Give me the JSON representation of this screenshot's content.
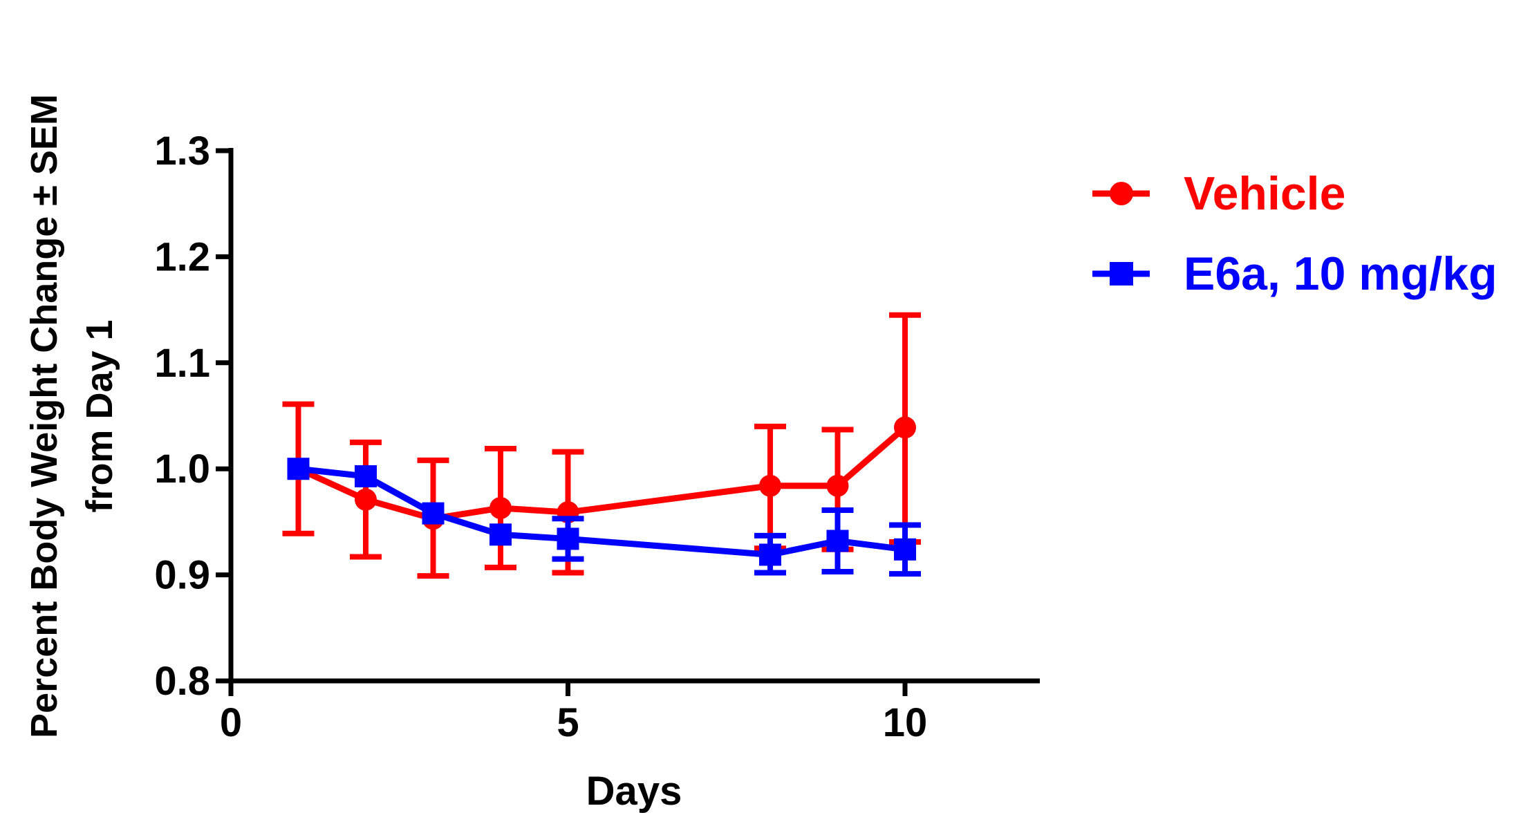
{
  "chart_data": {
    "type": "line",
    "title": "",
    "xlabel": "Days",
    "ylabel_line1": "Percent Body Weight Change ± SEM",
    "ylabel_line2": "from  Day 1",
    "xlim": [
      0,
      12
    ],
    "ylim": [
      0.8,
      1.3
    ],
    "xticks": [
      0,
      5,
      10
    ],
    "xtick_labels": [
      "0",
      "5",
      "10"
    ],
    "yticks": [
      0.8,
      0.9,
      1.0,
      1.1,
      1.2,
      1.3
    ],
    "ytick_labels": [
      "0.8",
      "0.9",
      "1.0",
      "1.1",
      "1.2",
      "1.3"
    ],
    "grid": false,
    "legend_position": "top-right outside",
    "series": [
      {
        "name": "Vehicle",
        "color": "#ff0000",
        "marker": "circle",
        "x": [
          1,
          2,
          3,
          4,
          5,
          8,
          9,
          10
        ],
        "y": [
          1.0,
          0.971,
          0.953,
          0.963,
          0.959,
          0.984,
          0.984,
          1.039
        ],
        "err_low": [
          0.939,
          0.917,
          0.899,
          0.907,
          0.902,
          0.925,
          0.924,
          0.931
        ],
        "err_high": [
          1.061,
          1.025,
          1.008,
          1.019,
          1.016,
          1.04,
          1.037,
          1.145
        ]
      },
      {
        "name": "E6a, 10 mg/kg",
        "color": "#0000ff",
        "marker": "square",
        "x": [
          1,
          2,
          3,
          4,
          5,
          8,
          9,
          10
        ],
        "y": [
          1.0,
          0.993,
          0.958,
          0.938,
          0.934,
          0.919,
          0.932,
          0.924
        ],
        "err_low": [
          1.0,
          0.993,
          0.958,
          0.938,
          0.915,
          0.902,
          0.903,
          0.901
        ],
        "err_high": [
          1.0,
          0.993,
          0.958,
          0.938,
          0.953,
          0.937,
          0.961,
          0.947
        ]
      }
    ]
  }
}
